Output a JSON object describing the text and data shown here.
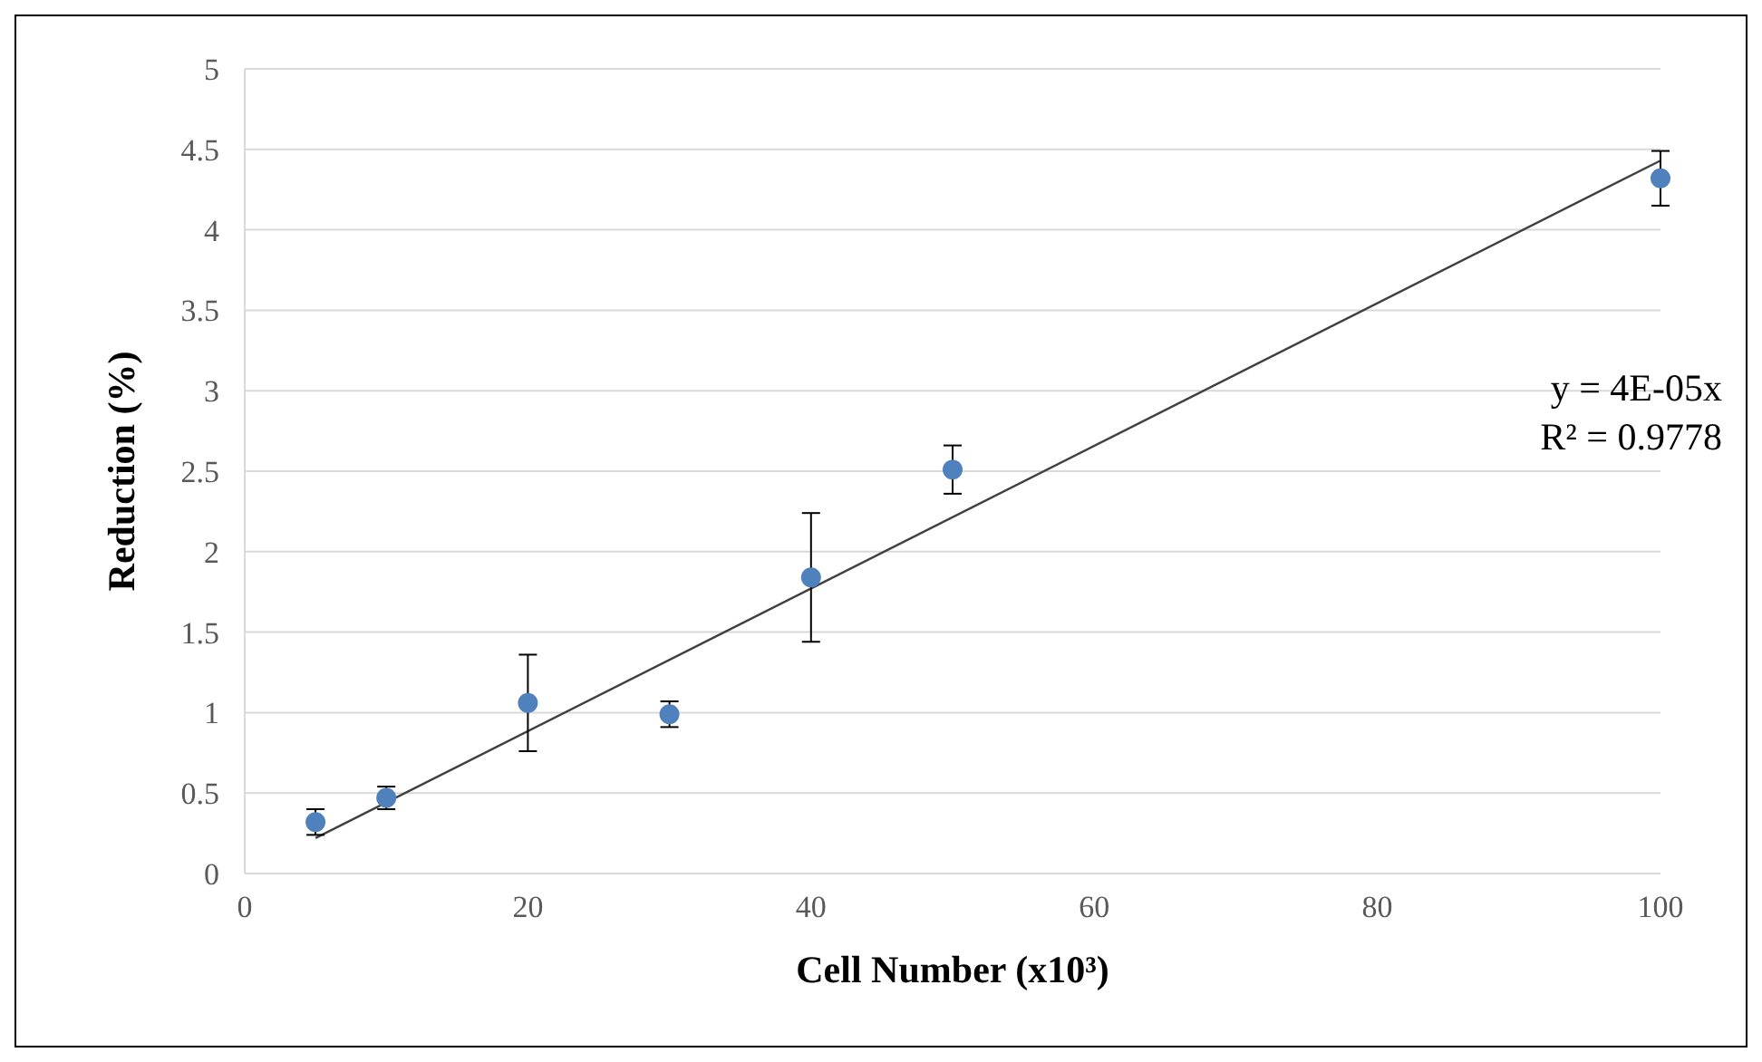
{
  "chart_data": {
    "type": "scatter",
    "xlabel": "Cell Number (x10³)",
    "ylabel": "Reduction (%)",
    "xlim": [
      0,
      100
    ],
    "xticks": [
      0,
      20,
      40,
      60,
      80,
      100
    ],
    "ylim": [
      0,
      5
    ],
    "yticks": [
      0,
      0.5,
      1,
      1.5,
      2,
      2.5,
      3,
      3.5,
      4,
      4.5,
      5
    ],
    "grid": "y",
    "annotations": [
      "y = 4E-05x",
      "R² = 0.9778"
    ],
    "series": [
      {
        "marker": "circle",
        "color": "#4f81bd",
        "x": [
          5,
          10,
          20,
          30,
          40,
          50,
          100
        ],
        "values": [
          0.32,
          0.47,
          1.06,
          0.99,
          1.84,
          2.51,
          4.32
        ],
        "errors": [
          0.08,
          0.07,
          0.3,
          0.08,
          0.4,
          0.15,
          0.17
        ]
      },
      {
        "type": "line",
        "color": "#404040",
        "x": [
          5,
          100
        ],
        "values": [
          0.22,
          4.43
        ],
        "line_style": "solid"
      }
    ]
  }
}
